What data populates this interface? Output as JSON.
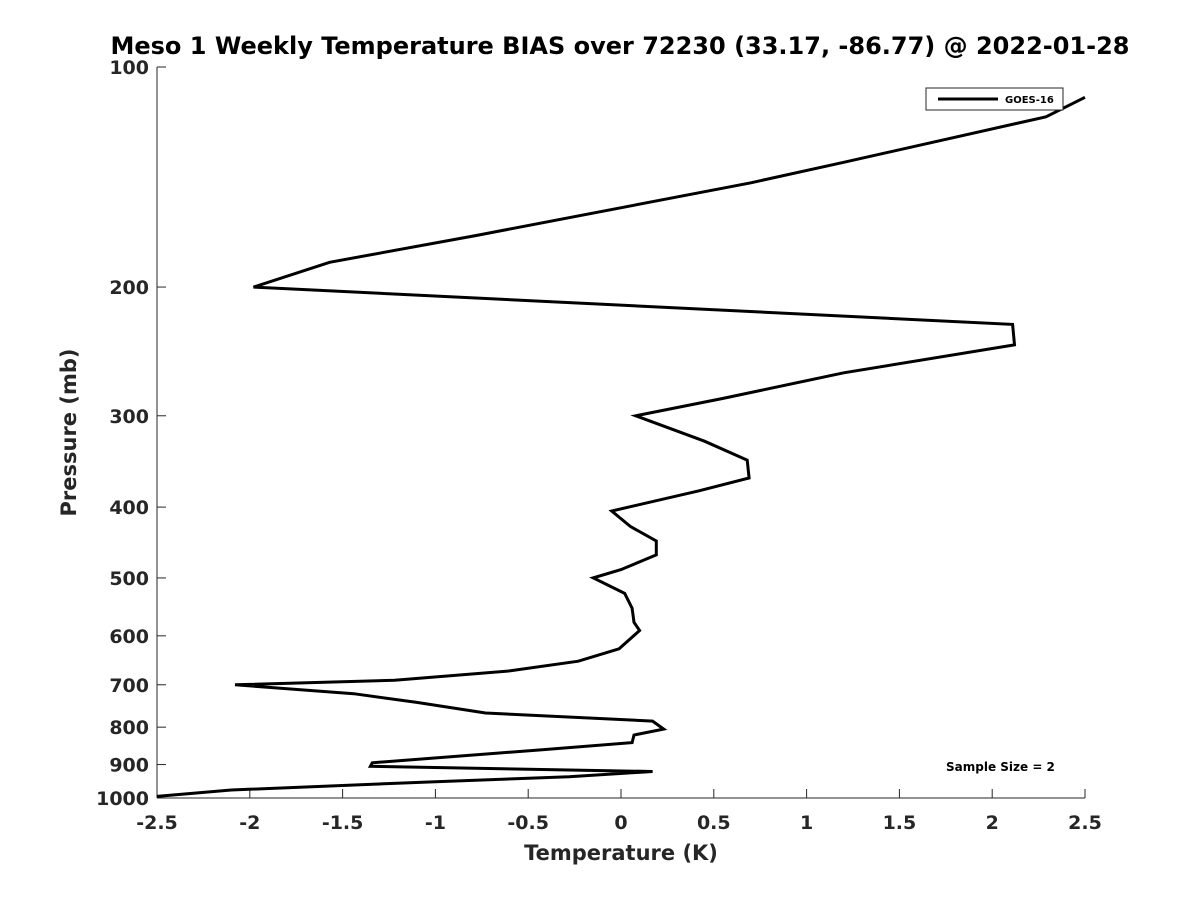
{
  "chart_data": {
    "type": "line",
    "title": "Meso 1 Weekly Temperature BIAS over 72230 (33.17, -86.77) @ 2022-01-28",
    "xlabel": "Temperature (K)",
    "ylabel": "Pressure (mb)",
    "xlim": [
      -2.5,
      2.5
    ],
    "ylim": [
      100,
      1000
    ],
    "yscale": "log",
    "y_reversed": true,
    "xticks": [
      -2.5,
      -2,
      -1.5,
      -1,
      -0.5,
      0,
      0.5,
      1,
      1.5,
      2,
      2.5
    ],
    "xtick_labels": [
      "-2.5",
      "-2",
      "-1.5",
      "-1",
      "-0.5",
      "0",
      "0.5",
      "1",
      "1.5",
      "2",
      "2.5"
    ],
    "yticks": [
      100,
      200,
      300,
      400,
      500,
      600,
      700,
      800,
      900,
      1000
    ],
    "ytick_labels": [
      "100",
      "200",
      "300",
      "400",
      "500",
      "600",
      "700",
      "800",
      "900",
      "1000"
    ],
    "legend": {
      "location": "top-right",
      "entries": [
        "GOES-16"
      ]
    },
    "annotation": "Sample Size = 2",
    "grid": false,
    "series": [
      {
        "name": "GOES-16",
        "color": "#000000",
        "points": [
          [
            2.5,
            110
          ],
          [
            2.29,
            117
          ],
          [
            1.2,
            135
          ],
          [
            0.7,
            144
          ],
          [
            -0.78,
            170
          ],
          [
            -1.57,
            185
          ],
          [
            -1.98,
            200
          ],
          [
            2.11,
            225
          ],
          [
            2.12,
            240
          ],
          [
            1.2,
            262
          ],
          [
            0.55,
            284
          ],
          [
            0.08,
            300
          ],
          [
            0.45,
            325
          ],
          [
            0.68,
            345
          ],
          [
            0.69,
            365
          ],
          [
            0.42,
            380
          ],
          [
            -0.05,
            405
          ],
          [
            0.05,
            425
          ],
          [
            0.19,
            445
          ],
          [
            0.19,
            465
          ],
          [
            0,
            487
          ],
          [
            -0.15,
            500
          ],
          [
            0.02,
            525
          ],
          [
            0.06,
            550
          ],
          [
            0.07,
            575
          ],
          [
            0.1,
            590
          ],
          [
            -0.01,
            625
          ],
          [
            -0.23,
            650
          ],
          [
            -0.6,
            670
          ],
          [
            -1.22,
            690
          ],
          [
            -2.08,
            700
          ],
          [
            -1.44,
            720
          ],
          [
            -1.1,
            740
          ],
          [
            -0.73,
            765
          ],
          [
            0.17,
            785
          ],
          [
            0.23,
            805
          ],
          [
            0.07,
            820
          ],
          [
            0.06,
            840
          ],
          [
            -0.45,
            860
          ],
          [
            -1.34,
            895
          ],
          [
            -1.35,
            905
          ],
          [
            0.17,
            920
          ],
          [
            -0.28,
            935
          ],
          [
            -1.0,
            950
          ],
          [
            -2.1,
            975
          ],
          [
            -2.5,
            995
          ]
        ]
      }
    ]
  }
}
